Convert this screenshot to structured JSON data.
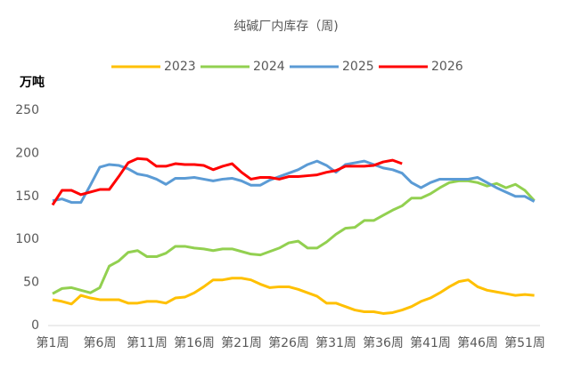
{
  "chart_data": {
    "type": "line",
    "title": "纯碱厂内库存（周)",
    "y_label": "万吨",
    "categories": [
      "第1周",
      null,
      null,
      null,
      null,
      "第6周",
      null,
      null,
      null,
      null,
      "第11周",
      null,
      null,
      null,
      null,
      "第16周",
      null,
      null,
      null,
      null,
      "第21周",
      null,
      null,
      null,
      null,
      "第26周",
      null,
      null,
      null,
      null,
      "第31周",
      null,
      null,
      null,
      null,
      "第36周",
      null,
      null,
      null,
      null,
      "第41周",
      null,
      null,
      null,
      null,
      "第46周",
      null,
      null,
      null,
      null,
      "第51周",
      null
    ],
    "series": [
      {
        "name": "2023",
        "color": "#ffc000",
        "values": [
          30,
          28,
          25,
          35,
          32,
          30,
          30,
          30,
          26,
          26,
          28,
          28,
          26,
          32,
          33,
          38,
          45,
          53,
          53,
          55,
          55,
          53,
          48,
          44,
          45,
          45,
          42,
          38,
          34,
          26,
          26,
          22,
          18,
          16,
          16,
          14,
          15,
          18,
          22,
          28,
          32,
          38,
          45,
          51,
          53,
          45,
          41,
          39,
          37,
          35,
          36,
          35
        ]
      },
      {
        "name": "2024",
        "color": "#92d050",
        "values": [
          37,
          43,
          44,
          41,
          38,
          44,
          69,
          75,
          85,
          87,
          80,
          80,
          84,
          92,
          92,
          90,
          89,
          87,
          89,
          89,
          86,
          83,
          82,
          86,
          90,
          96,
          98,
          90,
          90,
          97,
          106,
          113,
          114,
          122,
          122,
          128,
          134,
          139,
          148,
          148,
          153,
          160,
          166,
          168,
          168,
          166,
          162,
          165,
          160,
          164,
          157,
          145
        ]
      },
      {
        "name": "2025",
        "color": "#5b9bd5",
        "values": [
          145,
          147,
          143,
          143,
          163,
          184,
          187,
          186,
          182,
          176,
          174,
          170,
          164,
          171,
          171,
          172,
          170,
          168,
          170,
          171,
          168,
          163,
          163,
          169,
          173,
          177,
          181,
          187,
          191,
          186,
          178,
          187,
          189,
          191,
          187,
          183,
          181,
          177,
          166,
          160,
          166,
          170,
          170,
          170,
          170,
          172,
          166,
          160,
          155,
          150,
          150,
          144
        ]
      },
      {
        "name": "2026",
        "color": "#ff0000",
        "values": [
          140,
          157,
          157,
          152,
          155,
          158,
          158,
          173,
          189,
          194,
          193,
          185,
          185,
          188,
          187,
          187,
          186,
          181,
          185,
          188,
          178,
          170,
          172,
          172,
          170,
          173,
          173,
          174,
          175,
          178,
          180,
          185,
          185,
          185,
          186,
          190,
          192,
          188,
          null,
          null,
          null,
          null,
          null,
          null,
          null,
          null,
          null,
          null,
          null,
          null,
          null,
          null
        ]
      }
    ],
    "ylim": [
      0,
      250
    ],
    "yticks": [
      0,
      50,
      100,
      150,
      200,
      250
    ],
    "grid": false,
    "legend": "top"
  }
}
